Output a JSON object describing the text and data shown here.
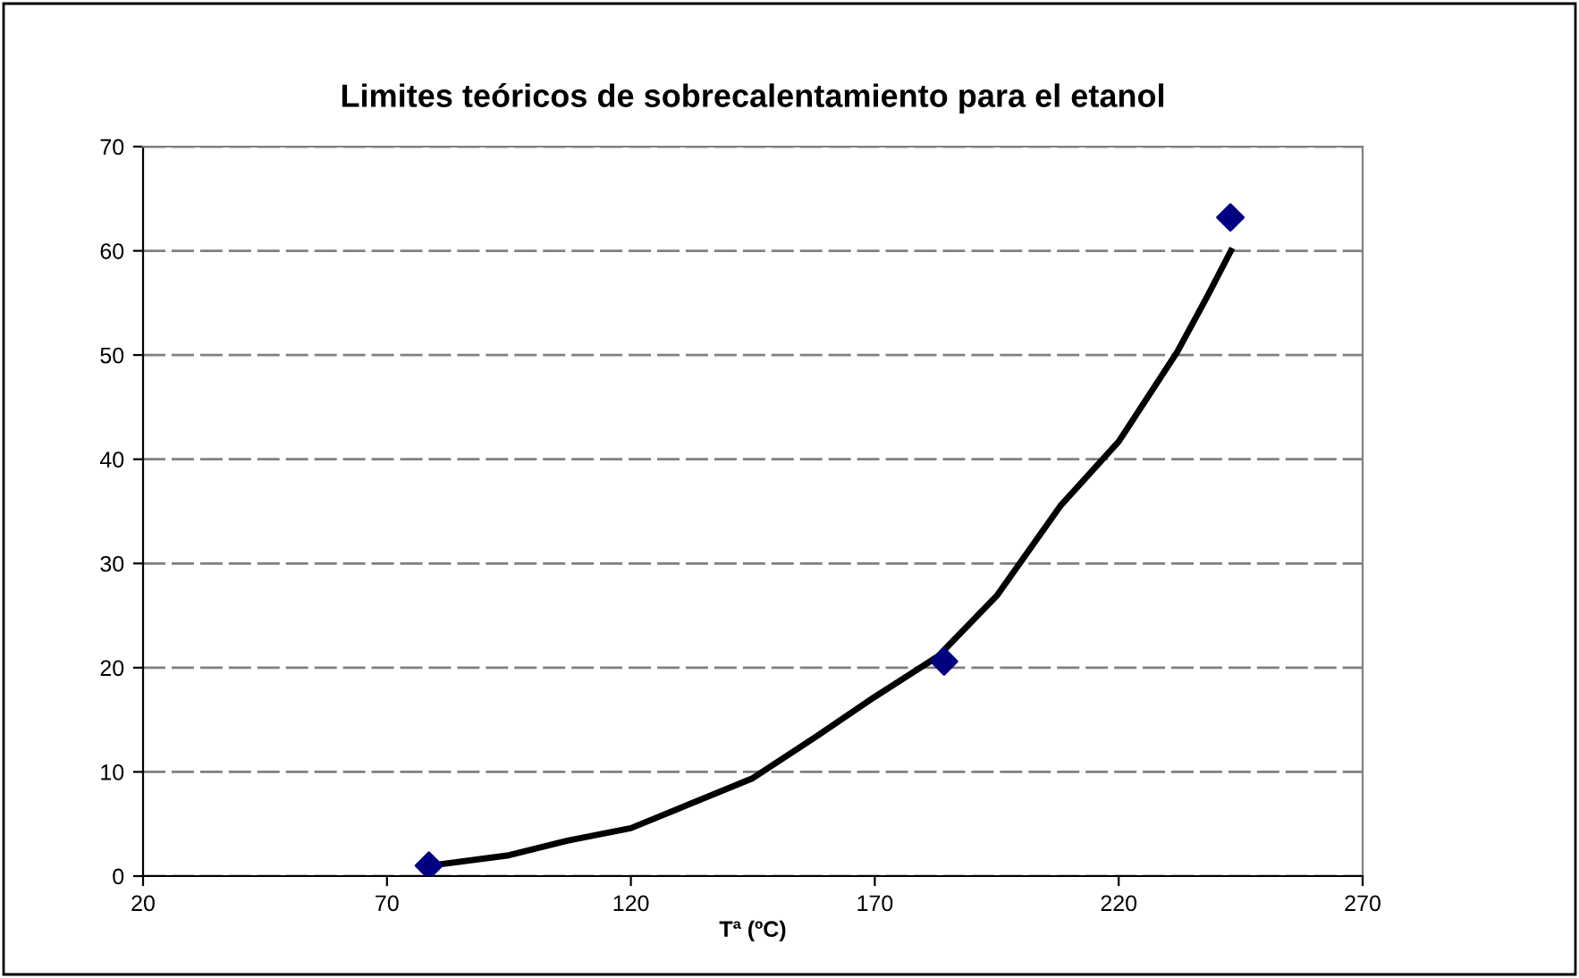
{
  "chart_data": {
    "type": "scatter",
    "title": "Limites teóricos de sobrecalentamiento para el etanol",
    "xlabel": "Tª (ºC)",
    "series": [
      {
        "color": "#000080",
        "marker": "diamond",
        "x": [
          78.6,
          184.2,
          242.9
        ],
        "values": [
          1,
          20.6,
          63.2
        ]
      },
      {
        "type": "line",
        "color": "#000000",
        "marker": "none",
        "line_style": "solid",
        "x": [
          78.6,
          95,
          107,
          120,
          145,
          158,
          170,
          183,
          195,
          208,
          220,
          232,
          238,
          243
        ],
        "values": [
          1,
          2.0,
          3.4,
          4.6,
          9.4,
          13.4,
          17.2,
          21.1,
          26.9,
          35.5,
          41.7,
          50.3,
          55.5,
          60
        ]
      }
    ],
    "xlim": [
      20,
      270
    ],
    "xticks": [
      20,
      70,
      120,
      170,
      220,
      270
    ],
    "ylim": [
      0,
      70
    ],
    "yticks": [
      0,
      10,
      20,
      30,
      40,
      50,
      60,
      70
    ],
    "grid": "y",
    "legend": false
  }
}
